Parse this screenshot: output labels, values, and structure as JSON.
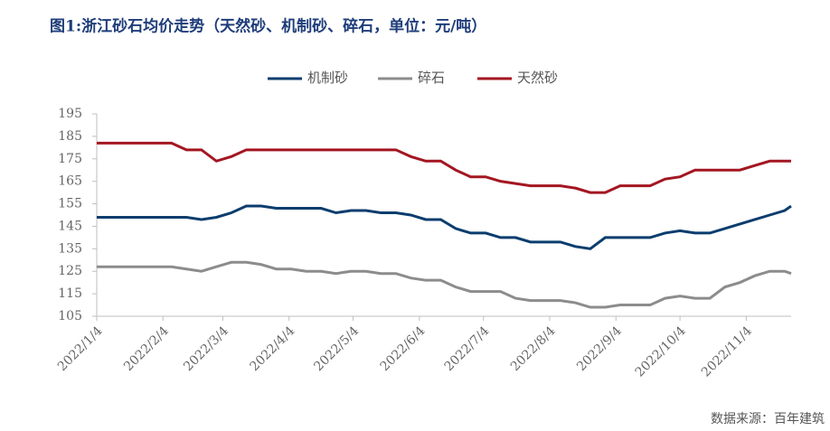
{
  "chart_data": {
    "type": "line",
    "title": "图1:浙江砂石均价走势（天然砂、机制砂、碎石，单位：元/吨）",
    "source": "数据来源：百年建筑",
    "x": [
      "2022/1/4",
      "2022/1/11",
      "2022/1/18",
      "2022/1/25",
      "2022/2/1",
      "2022/2/8",
      "2022/2/15",
      "2022/2/22",
      "2022/3/1",
      "2022/3/8",
      "2022/3/15",
      "2022/3/22",
      "2022/3/29",
      "2022/4/5",
      "2022/4/12",
      "2022/4/19",
      "2022/4/26",
      "2022/5/3",
      "2022/5/10",
      "2022/5/17",
      "2022/5/24",
      "2022/5/31",
      "2022/6/7",
      "2022/6/14",
      "2022/6/21",
      "2022/6/28",
      "2022/7/5",
      "2022/7/12",
      "2022/7/19",
      "2022/7/26",
      "2022/8/2",
      "2022/8/9",
      "2022/8/16",
      "2022/8/23",
      "2022/8/30",
      "2022/9/6",
      "2022/9/13",
      "2022/9/20",
      "2022/9/27",
      "2022/10/4",
      "2022/10/11",
      "2022/10/18",
      "2022/10/25",
      "2022/11/1",
      "2022/11/8",
      "2022/11/15",
      "2022/11/22",
      "2022/11/25"
    ],
    "series": [
      {
        "name": "机制砂",
        "color": "#0b3d6e",
        "values": [
          149,
          149,
          149,
          149,
          149,
          149,
          149,
          148,
          149,
          151,
          154,
          154,
          153,
          153,
          153,
          153,
          151,
          152,
          152,
          151,
          151,
          150,
          148,
          148,
          144,
          142,
          142,
          140,
          140,
          138,
          138,
          138,
          136,
          135,
          140,
          140,
          140,
          140,
          142,
          143,
          142,
          142,
          144,
          146,
          148,
          150,
          152,
          154
        ]
      },
      {
        "name": "碎石",
        "color": "#8c8c8c",
        "values": [
          127,
          127,
          127,
          127,
          127,
          127,
          126,
          125,
          127,
          129,
          129,
          128,
          126,
          126,
          125,
          125,
          124,
          125,
          125,
          124,
          124,
          122,
          121,
          121,
          118,
          116,
          116,
          116,
          113,
          112,
          112,
          112,
          111,
          109,
          109,
          110,
          110,
          110,
          113,
          114,
          113,
          113,
          118,
          120,
          123,
          125,
          125,
          124
        ]
      },
      {
        "name": "天然砂",
        "color": "#a31621",
        "values": [
          182,
          182,
          182,
          182,
          182,
          182,
          179,
          179,
          174,
          176,
          179,
          179,
          179,
          179,
          179,
          179,
          179,
          179,
          179,
          179,
          179,
          176,
          174,
          174,
          170,
          167,
          167,
          165,
          164,
          163,
          163,
          163,
          162,
          160,
          160,
          163,
          163,
          163,
          166,
          167,
          170,
          170,
          170,
          170,
          172,
          174,
          174,
          174
        ]
      }
    ],
    "xlim": [
      "2022/1/4",
      "2022/11/25"
    ],
    "xticks": [
      "2022/1/4",
      "2022/2/4",
      "2022/3/4",
      "2022/4/4",
      "2022/5/4",
      "2022/6/4",
      "2022/7/4",
      "2022/8/4",
      "2022/9/4",
      "2022/10/4",
      "2022/11/4"
    ],
    "ylim": [
      105,
      195
    ],
    "yticks": [
      105,
      115,
      125,
      135,
      145,
      155,
      165,
      175,
      185,
      195
    ],
    "legend": "top"
  }
}
